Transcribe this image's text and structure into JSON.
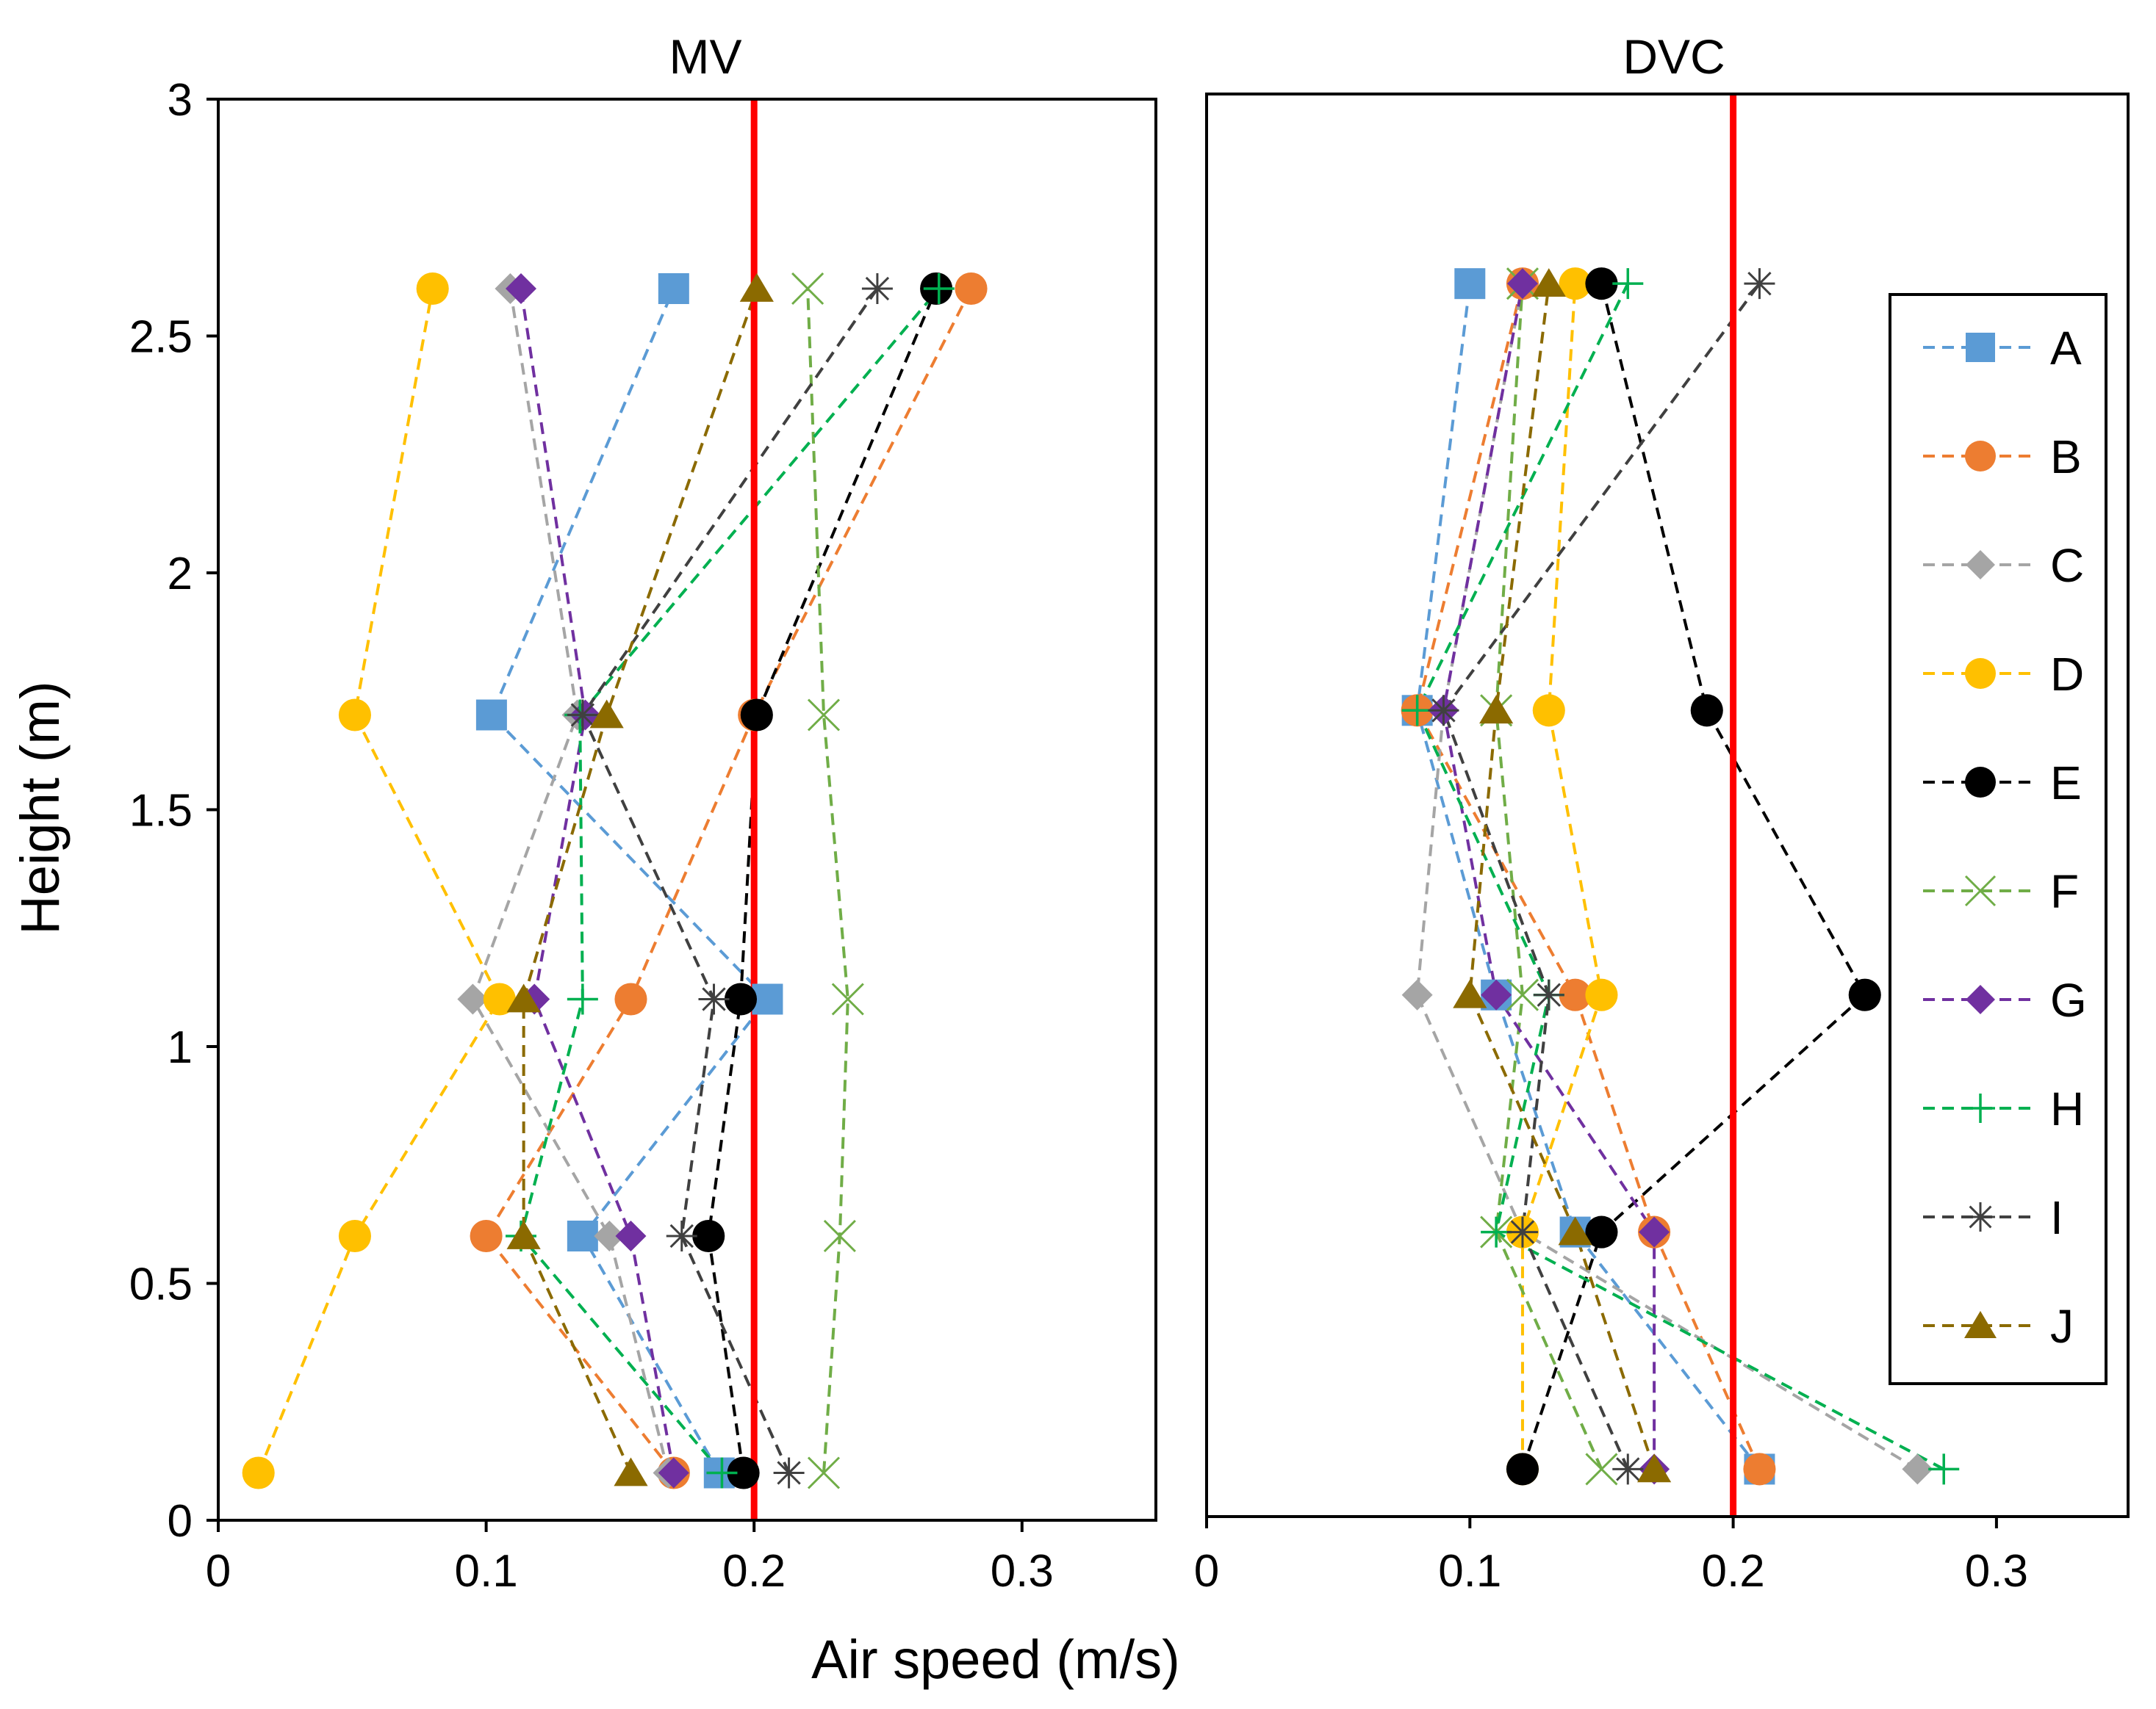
{
  "figure": {
    "xlabel": "Air speed (m/s)",
    "ylabel": "Height (m)",
    "ylim": [
      0,
      3
    ],
    "y_ticks": [
      0,
      0.5,
      1,
      1.5,
      2,
      2.5,
      3
    ],
    "y_tick_labels": [
      "0",
      "0.5",
      "1",
      "1.5",
      "2",
      "2.5",
      "3"
    ],
    "x_ticks": [
      0,
      0.1,
      0.2,
      0.3
    ],
    "x_tick_labels": [
      "0",
      "0.1",
      "0.2",
      "0.3"
    ],
    "xlim": [
      0,
      0.35
    ],
    "limit_line": {
      "x": 0.2,
      "color": "#ff0000"
    }
  },
  "legend": {
    "placement": "right of DVC panel",
    "entries": [
      {
        "name": "A",
        "color": "#5b9bd5",
        "marker": "square"
      },
      {
        "name": "B",
        "color": "#ed7d31",
        "marker": "circle"
      },
      {
        "name": "C",
        "color": "#a5a5a5",
        "marker": "diamond"
      },
      {
        "name": "D",
        "color": "#ffc000",
        "marker": "circle"
      },
      {
        "name": "E",
        "color": "#000000",
        "marker": "circle"
      },
      {
        "name": "F",
        "color": "#70ad47",
        "marker": "x"
      },
      {
        "name": "G",
        "color": "#7030a0",
        "marker": "diamond"
      },
      {
        "name": "H",
        "color": "#00b050",
        "marker": "plus"
      },
      {
        "name": "I",
        "color": "#404040",
        "marker": "asterisk"
      },
      {
        "name": "J",
        "color": "#8b6a00",
        "marker": "triangle"
      }
    ]
  },
  "chart_data": [
    {
      "type": "scatter",
      "title": "MV",
      "xlabel": "Air speed (m/s)",
      "ylabel": "Height (m)",
      "xlim": [
        0,
        0.35
      ],
      "ylim": [
        0,
        3
      ],
      "heights": [
        0.1,
        0.6,
        1.1,
        1.7,
        2.6
      ],
      "series": [
        {
          "name": "A",
          "x": [
            0.187,
            0.136,
            0.205,
            0.102,
            0.17
          ]
        },
        {
          "name": "B",
          "x": [
            0.17,
            0.1,
            0.154,
            0.2,
            0.281
          ]
        },
        {
          "name": "C",
          "x": [
            0.168,
            0.146,
            0.095,
            0.134,
            0.109
          ]
        },
        {
          "name": "D",
          "x": [
            0.015,
            0.051,
            0.105,
            0.051,
            0.08
          ]
        },
        {
          "name": "E",
          "x": [
            0.196,
            0.183,
            0.195,
            0.201,
            0.268
          ]
        },
        {
          "name": "F",
          "x": [
            0.226,
            0.232,
            0.235,
            0.226,
            0.22
          ]
        },
        {
          "name": "G",
          "x": [
            0.17,
            0.154,
            0.118,
            0.137,
            0.113
          ]
        },
        {
          "name": "H",
          "x": [
            0.188,
            0.113,
            0.136,
            0.135,
            0.269
          ]
        },
        {
          "name": "I",
          "x": [
            0.213,
            0.173,
            0.185,
            0.136,
            0.246
          ]
        },
        {
          "name": "J",
          "x": [
            0.154,
            0.114,
            0.114,
            0.145,
            0.201
          ]
        }
      ]
    },
    {
      "type": "scatter",
      "title": "DVC",
      "xlabel": "Air speed (m/s)",
      "ylabel": "Height (m)",
      "xlim": [
        0,
        0.35
      ],
      "ylim": [
        0,
        3
      ],
      "heights": [
        0.1,
        0.6,
        1.1,
        1.7,
        2.6
      ],
      "series": [
        {
          "name": "A",
          "x": [
            0.21,
            0.14,
            0.11,
            0.08,
            0.1
          ]
        },
        {
          "name": "B",
          "x": [
            0.21,
            0.17,
            0.14,
            0.08,
            0.12
          ]
        },
        {
          "name": "C",
          "x": [
            0.27,
            0.12,
            0.08,
            0.09,
            0.12
          ]
        },
        {
          "name": "D",
          "x": [
            0.12,
            0.12,
            0.15,
            0.13,
            0.14
          ]
        },
        {
          "name": "E",
          "x": [
            0.12,
            0.15,
            0.25,
            0.19,
            0.15
          ]
        },
        {
          "name": "F",
          "x": [
            0.15,
            0.11,
            0.12,
            0.11,
            0.12
          ]
        },
        {
          "name": "G",
          "x": [
            0.17,
            0.17,
            0.11,
            0.09,
            0.12
          ]
        },
        {
          "name": "H",
          "x": [
            0.28,
            0.11,
            0.13,
            0.08,
            0.16
          ]
        },
        {
          "name": "I",
          "x": [
            0.16,
            0.12,
            0.13,
            0.09,
            0.21
          ]
        },
        {
          "name": "J",
          "x": [
            0.17,
            0.14,
            0.1,
            0.11,
            0.13
          ]
        }
      ]
    }
  ]
}
